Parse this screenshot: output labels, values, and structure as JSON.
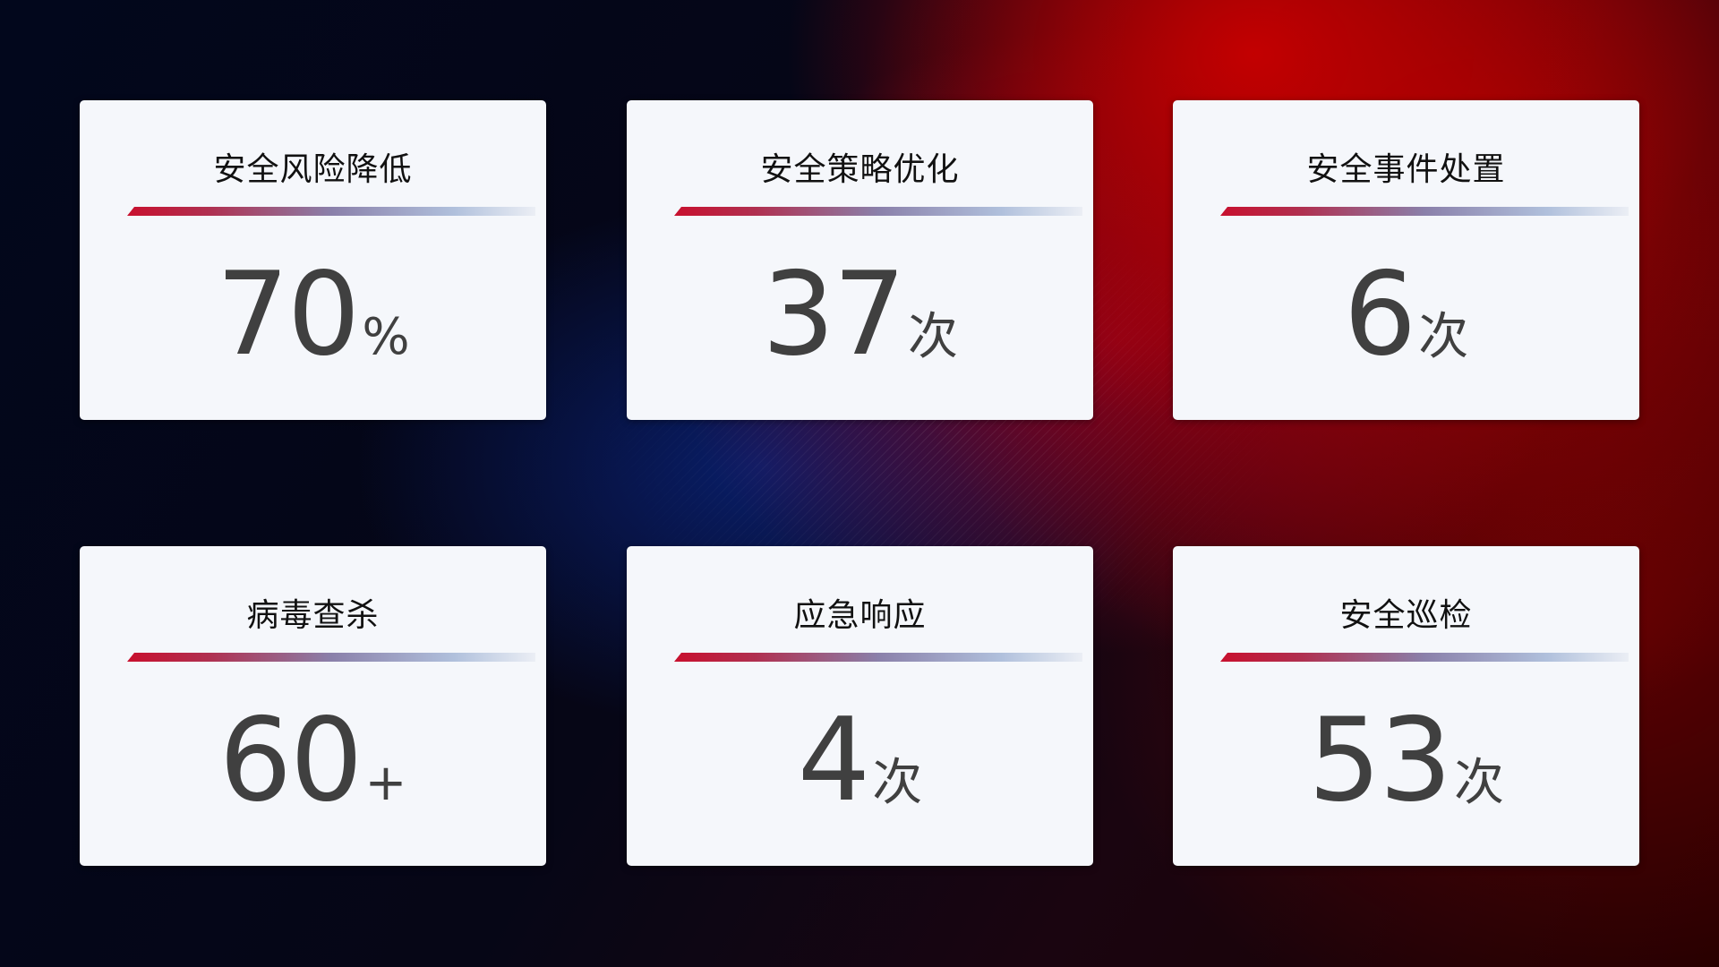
{
  "cards": [
    {
      "title": "安全风险降低",
      "value": "70",
      "unit": "%"
    },
    {
      "title": "安全策略优化",
      "value": "37",
      "unit": "次"
    },
    {
      "title": "安全事件处置",
      "value": "6",
      "unit": "次"
    },
    {
      "title": "病毒查杀",
      "value": "60",
      "unit": "+"
    },
    {
      "title": "应急响应",
      "value": "4",
      "unit": "次"
    },
    {
      "title": "安全巡检",
      "value": "53",
      "unit": "次"
    }
  ],
  "colors": {
    "accent_red": "#c8102e",
    "accent_blue": "#8a9cc8",
    "card_bg": "#f5f7fb",
    "value_text": "#404040"
  }
}
